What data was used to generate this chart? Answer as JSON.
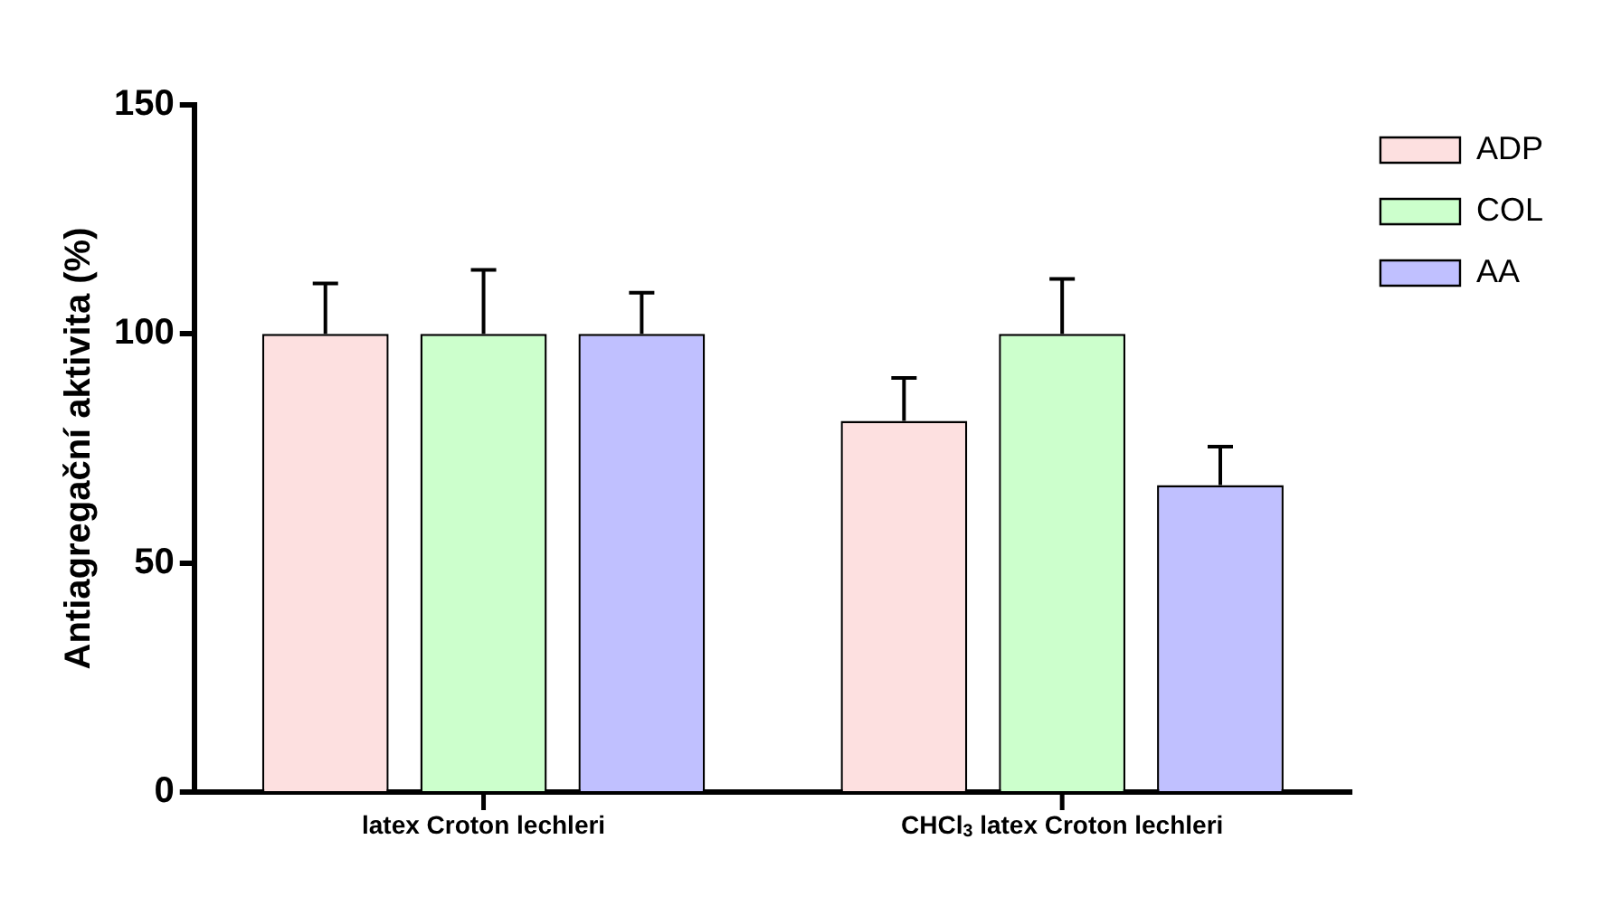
{
  "chart_data": {
    "type": "bar",
    "ylabel": "Antiagregační aktivita (%)",
    "categories": [
      "latex Croton lechleri",
      "CHCl$_{3}$ latex Croton lechleri"
    ],
    "series": [
      {
        "name": "ADP",
        "color": "#fde0e0",
        "values": [
          100,
          81
        ],
        "errors": [
          [
            100,
            111
          ],
          [
            81,
            90.4
          ]
        ]
      },
      {
        "name": "COL",
        "color": "#ccffcc",
        "values": [
          100,
          100
        ],
        "errors": [
          [
            100,
            114
          ],
          [
            100,
            112
          ]
        ]
      },
      {
        "name": "AA",
        "color": "#c0c0ff",
        "values": [
          100,
          67
        ],
        "errors": [
          [
            100,
            109
          ],
          [
            67,
            75.4
          ]
        ]
      }
    ],
    "ylim": [
      0,
      150
    ],
    "yticks": [
      0,
      50,
      100,
      150
    ],
    "grid": false,
    "legend": "top right"
  }
}
